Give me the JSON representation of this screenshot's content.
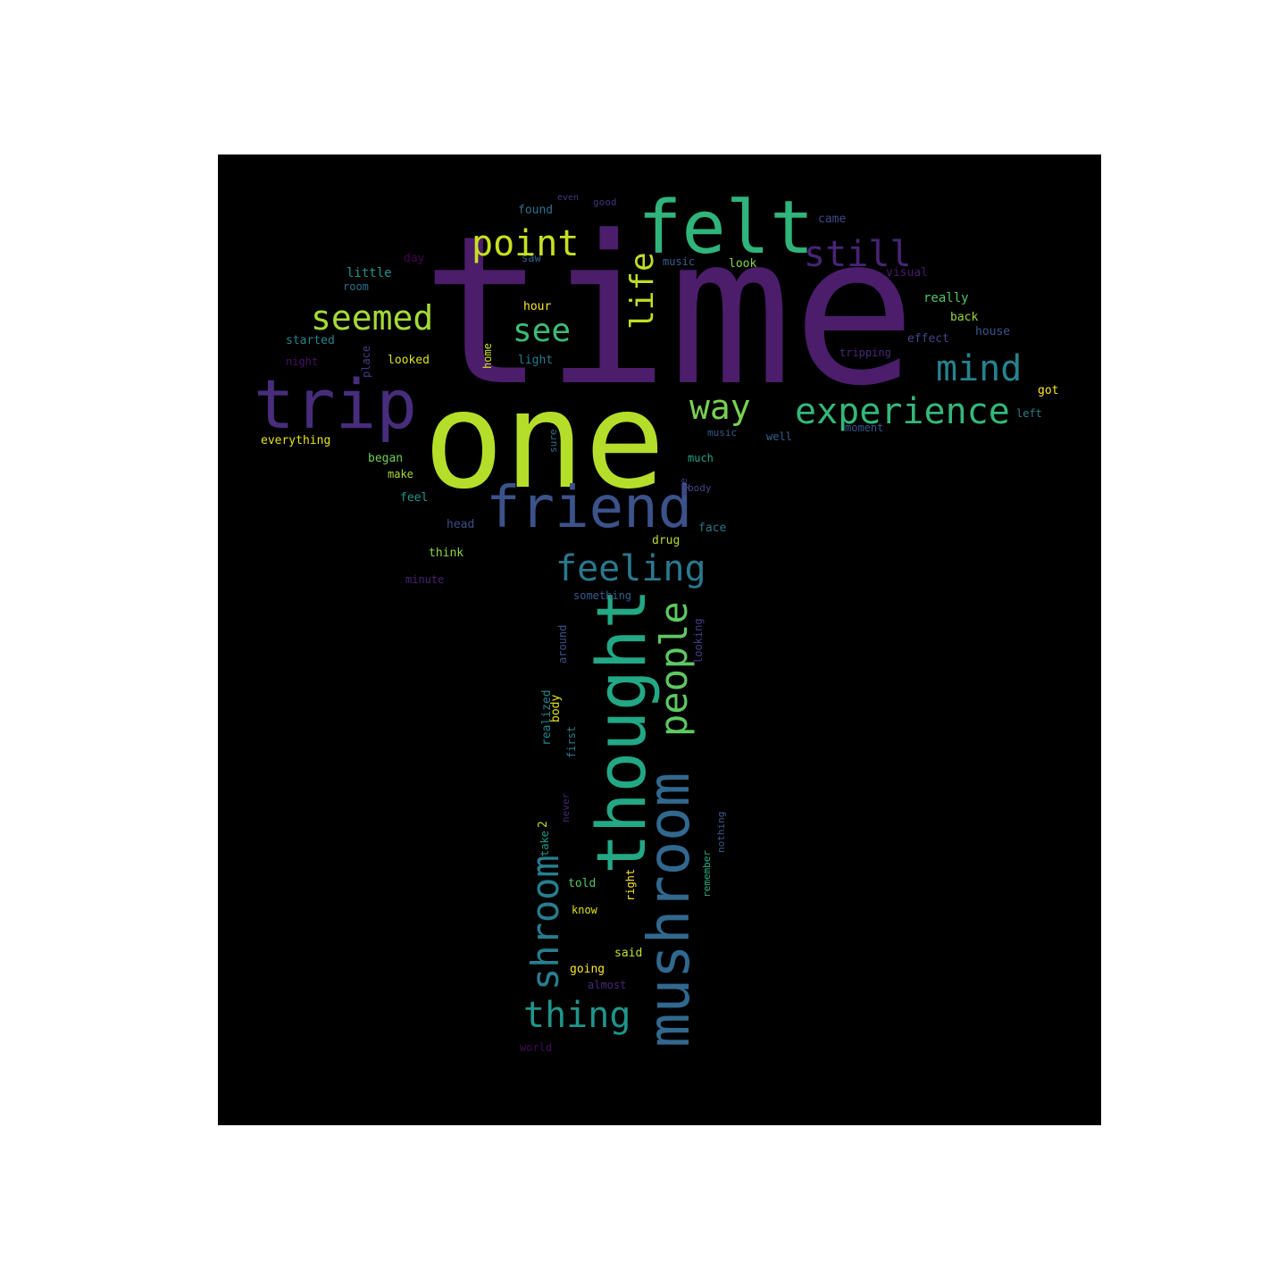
{
  "canvas_background": "#000000",
  "page_background": "#ffffff",
  "words": [
    {
      "text": "time",
      "color": "#4b1d6b",
      "orientation": "horizontal"
    },
    {
      "text": "one",
      "color": "#b5de2b",
      "orientation": "horizontal"
    },
    {
      "text": "felt",
      "color": "#2fb47c",
      "orientation": "horizontal"
    },
    {
      "text": "trip",
      "color": "#472d7b",
      "orientation": "horizontal"
    },
    {
      "text": "friend",
      "color": "#3b528b",
      "orientation": "horizontal"
    },
    {
      "text": "thought",
      "color": "#22a884",
      "orientation": "vertical"
    },
    {
      "text": "mushroom",
      "color": "#31688e",
      "orientation": "vertical"
    },
    {
      "text": "experience",
      "color": "#35b779",
      "orientation": "horizontal"
    },
    {
      "text": "point",
      "color": "#c8e020",
      "orientation": "horizontal"
    },
    {
      "text": "still",
      "color": "#482475",
      "orientation": "horizontal"
    },
    {
      "text": "seemed",
      "color": "#a5db36",
      "orientation": "horizontal"
    },
    {
      "text": "mind",
      "color": "#26828e",
      "orientation": "horizontal"
    },
    {
      "text": "feeling",
      "color": "#2a788e",
      "orientation": "horizontal"
    },
    {
      "text": "people",
      "color": "#5ec962",
      "orientation": "vertical"
    },
    {
      "text": "shroom",
      "color": "#277f8e",
      "orientation": "vertical"
    },
    {
      "text": "thing",
      "color": "#1f958b",
      "orientation": "horizontal"
    },
    {
      "text": "way",
      "color": "#7ad151",
      "orientation": "horizontal"
    },
    {
      "text": "see",
      "color": "#3dbc74",
      "orientation": "horizontal"
    },
    {
      "text": "life",
      "color": "#bddf26",
      "orientation": "vertical"
    },
    {
      "text": "found",
      "color": "#2c728e",
      "orientation": "horizontal"
    },
    {
      "text": "good",
      "color": "#46327e",
      "orientation": "horizontal"
    },
    {
      "text": "even",
      "color": "#443983",
      "orientation": "horizontal"
    },
    {
      "text": "came",
      "color": "#3e4989",
      "orientation": "horizontal"
    },
    {
      "text": "day",
      "color": "#440154",
      "orientation": "horizontal"
    },
    {
      "text": "saw",
      "color": "#33638d",
      "orientation": "horizontal"
    },
    {
      "text": "little",
      "color": "#21918c",
      "orientation": "horizontal"
    },
    {
      "text": "room",
      "color": "#2d708e",
      "orientation": "horizontal"
    },
    {
      "text": "music",
      "color": "#365c8d",
      "orientation": "horizontal"
    },
    {
      "text": "look",
      "color": "#86d549",
      "orientation": "horizontal"
    },
    {
      "text": "visual",
      "color": "#481a6c",
      "orientation": "horizontal"
    },
    {
      "text": "really",
      "color": "#52c569",
      "orientation": "horizontal"
    },
    {
      "text": "hour",
      "color": "#fde725",
      "orientation": "horizontal"
    },
    {
      "text": "back",
      "color": "#9bd93c",
      "orientation": "horizontal"
    },
    {
      "text": "house",
      "color": "#3a548c",
      "orientation": "horizontal"
    },
    {
      "text": "started",
      "color": "#25848e",
      "orientation": "horizontal"
    },
    {
      "text": "place",
      "color": "#433e85",
      "orientation": "vertical"
    },
    {
      "text": "home",
      "color": "#d0e11c",
      "orientation": "vertical"
    },
    {
      "text": "effect",
      "color": "#404688",
      "orientation": "horizontal"
    },
    {
      "text": "night",
      "color": "#471063",
      "orientation": "horizontal"
    },
    {
      "text": "looked",
      "color": "#dae319",
      "orientation": "horizontal"
    },
    {
      "text": "light",
      "color": "#297b8e",
      "orientation": "horizontal"
    },
    {
      "text": "tripping",
      "color": "#482878",
      "orientation": "horizontal"
    },
    {
      "text": "got",
      "color": "#fde725",
      "orientation": "horizontal"
    },
    {
      "text": "left",
      "color": "#287d8e",
      "orientation": "horizontal"
    },
    {
      "text": "everything",
      "color": "#e5e419",
      "orientation": "horizontal"
    },
    {
      "text": "moment",
      "color": "#39568c",
      "orientation": "horizontal"
    },
    {
      "text": "music",
      "color": "#375a8c",
      "orientation": "horizontal"
    },
    {
      "text": "well",
      "color": "#34618d",
      "orientation": "horizontal"
    },
    {
      "text": "began",
      "color": "#70cf57",
      "orientation": "horizontal"
    },
    {
      "text": "much",
      "color": "#20a386",
      "orientation": "horizontal"
    },
    {
      "text": "make",
      "color": "#a8db34",
      "orientation": "horizontal"
    },
    {
      "text": "feel",
      "color": "#1f9a8a",
      "orientation": "horizontal"
    },
    {
      "text": "body",
      "color": "#414487",
      "orientation": "horizontal"
    },
    {
      "text": "head",
      "color": "#3e4c8a",
      "orientation": "horizontal"
    },
    {
      "text": "drug",
      "color": "#b2dd2d",
      "orientation": "horizontal"
    },
    {
      "text": "face",
      "color": "#2a768e",
      "orientation": "horizontal"
    },
    {
      "text": "think",
      "color": "#8bd646",
      "orientation": "horizontal"
    },
    {
      "text": "minute",
      "color": "#482173",
      "orientation": "horizontal"
    },
    {
      "text": "something",
      "color": "#365d8d",
      "orientation": "horizontal"
    },
    {
      "text": "around",
      "color": "#3b518b",
      "orientation": "vertical"
    },
    {
      "text": "looking",
      "color": "#433d84",
      "orientation": "vertical"
    },
    {
      "text": "first",
      "color": "#287c8e",
      "orientation": "vertical"
    },
    {
      "text": "body",
      "color": "#e2e418",
      "orientation": "vertical"
    },
    {
      "text": "realized",
      "color": "#24868e",
      "orientation": "vertical"
    },
    {
      "text": "2",
      "color": "#c2df23",
      "orientation": "vertical"
    },
    {
      "text": "take",
      "color": "#1e9c89",
      "orientation": "vertical"
    },
    {
      "text": "told",
      "color": "#56c667",
      "orientation": "horizontal"
    },
    {
      "text": "know",
      "color": "#dde318",
      "orientation": "horizontal"
    },
    {
      "text": "right",
      "color": "#fde725",
      "orientation": "vertical"
    },
    {
      "text": "remember",
      "color": "#29af7f",
      "orientation": "vertical"
    },
    {
      "text": "nothing",
      "color": "#38598c",
      "orientation": "vertical"
    },
    {
      "text": "said",
      "color": "#c5e021",
      "orientation": "horizontal"
    },
    {
      "text": "going",
      "color": "#fbe723",
      "orientation": "horizontal"
    },
    {
      "text": "almost",
      "color": "#482979",
      "orientation": "horizontal"
    },
    {
      "text": "world",
      "color": "#46085c",
      "orientation": "horizontal"
    },
    {
      "text": "never",
      "color": "#482576",
      "orientation": "vertical"
    },
    {
      "text": "eye",
      "color": "#453781",
      "orientation": "vertical"
    },
    {
      "text": "sure",
      "color": "#2e6f8e",
      "orientation": "vertical"
    }
  ]
}
